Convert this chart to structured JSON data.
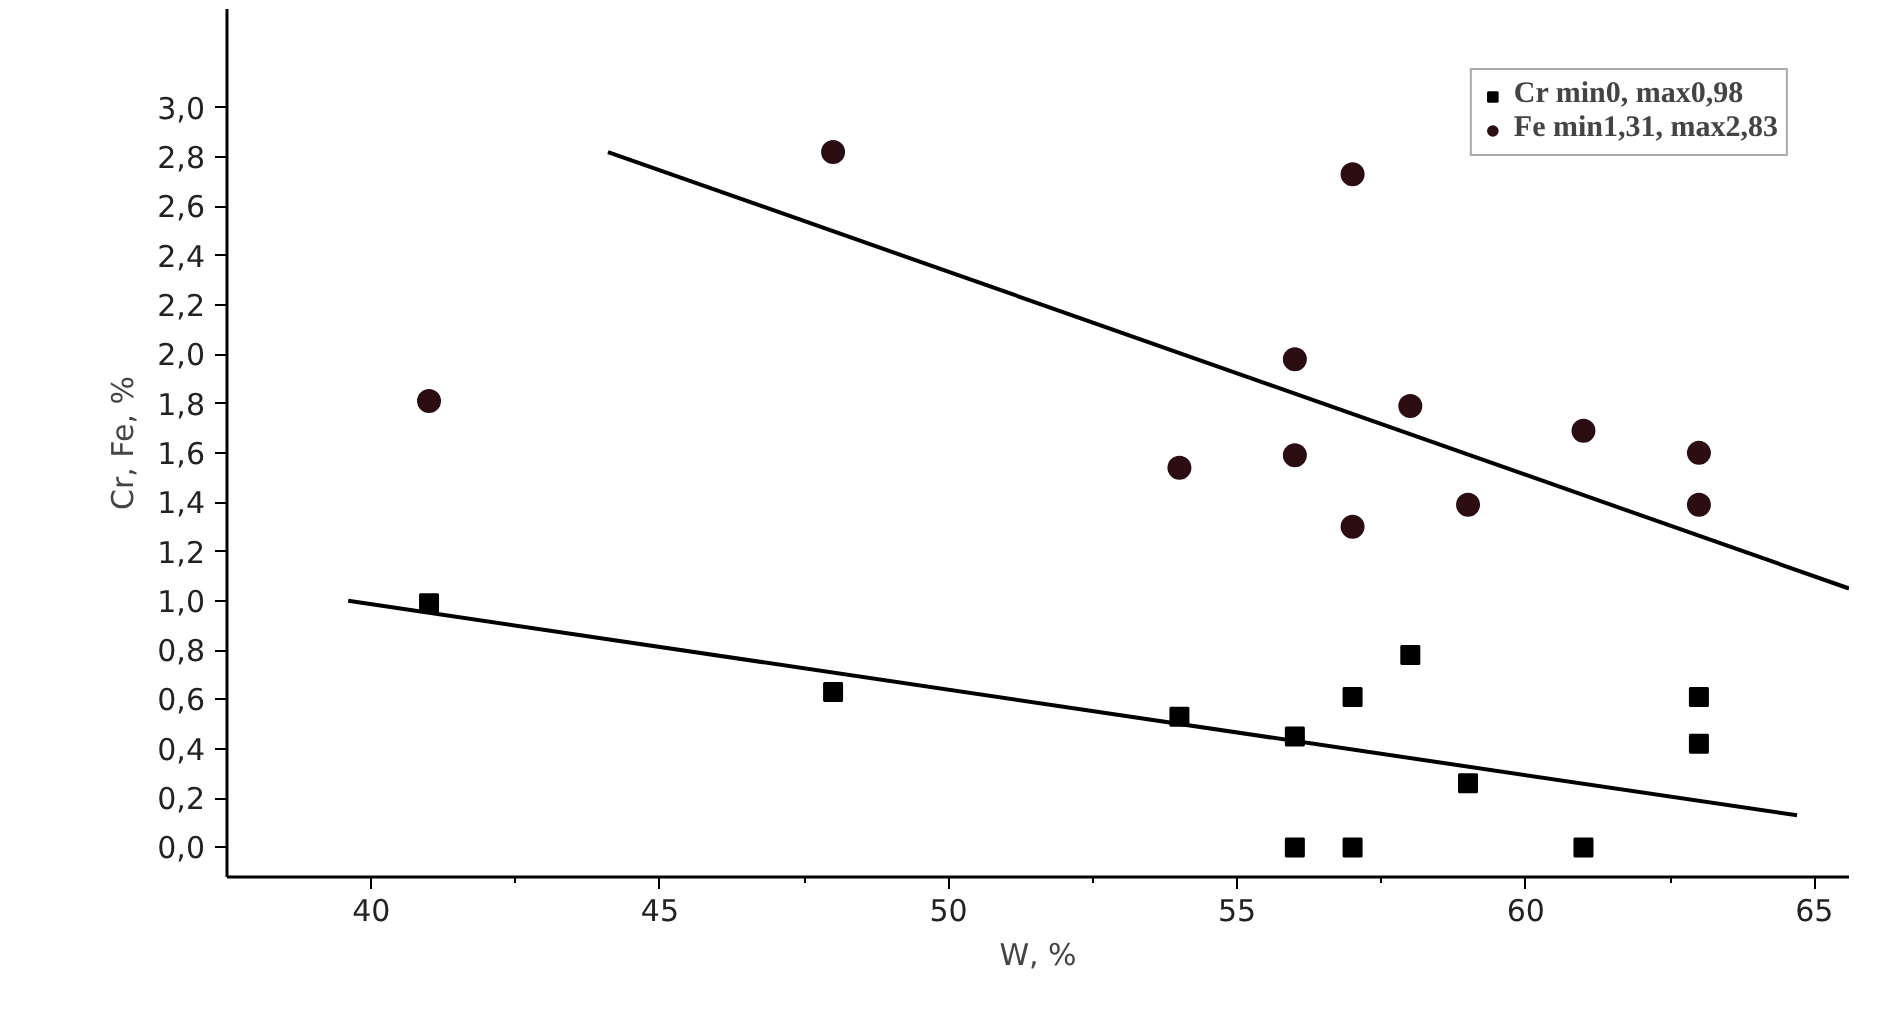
{
  "chart_data": {
    "type": "scatter",
    "xlabel": "W, %",
    "ylabel": "Cr, Fe, %",
    "xlim": [
      37.5,
      65.6
    ],
    "ylim": [
      -0.12,
      3.4
    ],
    "xticks": [
      40,
      {
        "value": 42.5,
        "label": null
      },
      45,
      {
        "value": 47.5,
        "label": null
      },
      50,
      {
        "value": 52.5,
        "label": null
      },
      55,
      {
        "value": 57.5,
        "label": null
      },
      60,
      {
        "value": 62.5,
        "label": null
      },
      65
    ],
    "yticks": [
      {
        "value": 0,
        "label": "0,0"
      },
      {
        "value": 0.2,
        "label": "0,2"
      },
      {
        "value": 0.4,
        "label": "0,4"
      },
      {
        "value": 0.6,
        "label": "0,6"
      },
      {
        "value": 0.8,
        "label": "0,8"
      },
      {
        "value": 1.0,
        "label": "1,0"
      },
      {
        "value": 1.2,
        "label": "1,2"
      },
      {
        "value": 1.4,
        "label": "1,4"
      },
      {
        "value": 1.6,
        "label": "1,6"
      },
      {
        "value": 1.8,
        "label": "1,8"
      },
      {
        "value": 2.0,
        "label": "2,0"
      },
      {
        "value": 2.2,
        "label": "2,2"
      },
      {
        "value": 2.4,
        "label": "2,4"
      },
      {
        "value": 2.6,
        "label": "2,6"
      },
      {
        "value": 2.8,
        "label": "2,8"
      },
      {
        "value": 3.0,
        "label": "3,0"
      }
    ],
    "grid": false,
    "legend": "top right",
    "series": [
      {
        "name": "Cr min0, max0,98",
        "color": "#000000",
        "marker": "square",
        "x": [
          41,
          48,
          54,
          56,
          56,
          57,
          57,
          58,
          59,
          61,
          63,
          63
        ],
        "values": [
          0.99,
          0.63,
          0.53,
          0.45,
          0.0,
          0.61,
          0.0,
          0.78,
          0.26,
          0.0,
          0.61,
          0.42
        ]
      },
      {
        "name": "Fe min1,31, max2,83",
        "color": "#2b0d12",
        "marker": "circle",
        "x": [
          41,
          48,
          54,
          56,
          56,
          57,
          57,
          58,
          59,
          61,
          63,
          63
        ],
        "values": [
          1.81,
          2.82,
          1.54,
          1.98,
          1.59,
          2.73,
          1.3,
          1.79,
          1.39,
          1.69,
          1.6,
          1.39
        ]
      },
      {
        "type": "line",
        "color": "#000000",
        "x": [
          39.6,
          64.7
        ],
        "values": [
          1.0,
          0.13
        ]
      },
      {
        "type": "line",
        "color": "#000000",
        "x": [
          44.1,
          65.6
        ],
        "values": [
          2.82,
          1.05
        ]
      }
    ]
  }
}
